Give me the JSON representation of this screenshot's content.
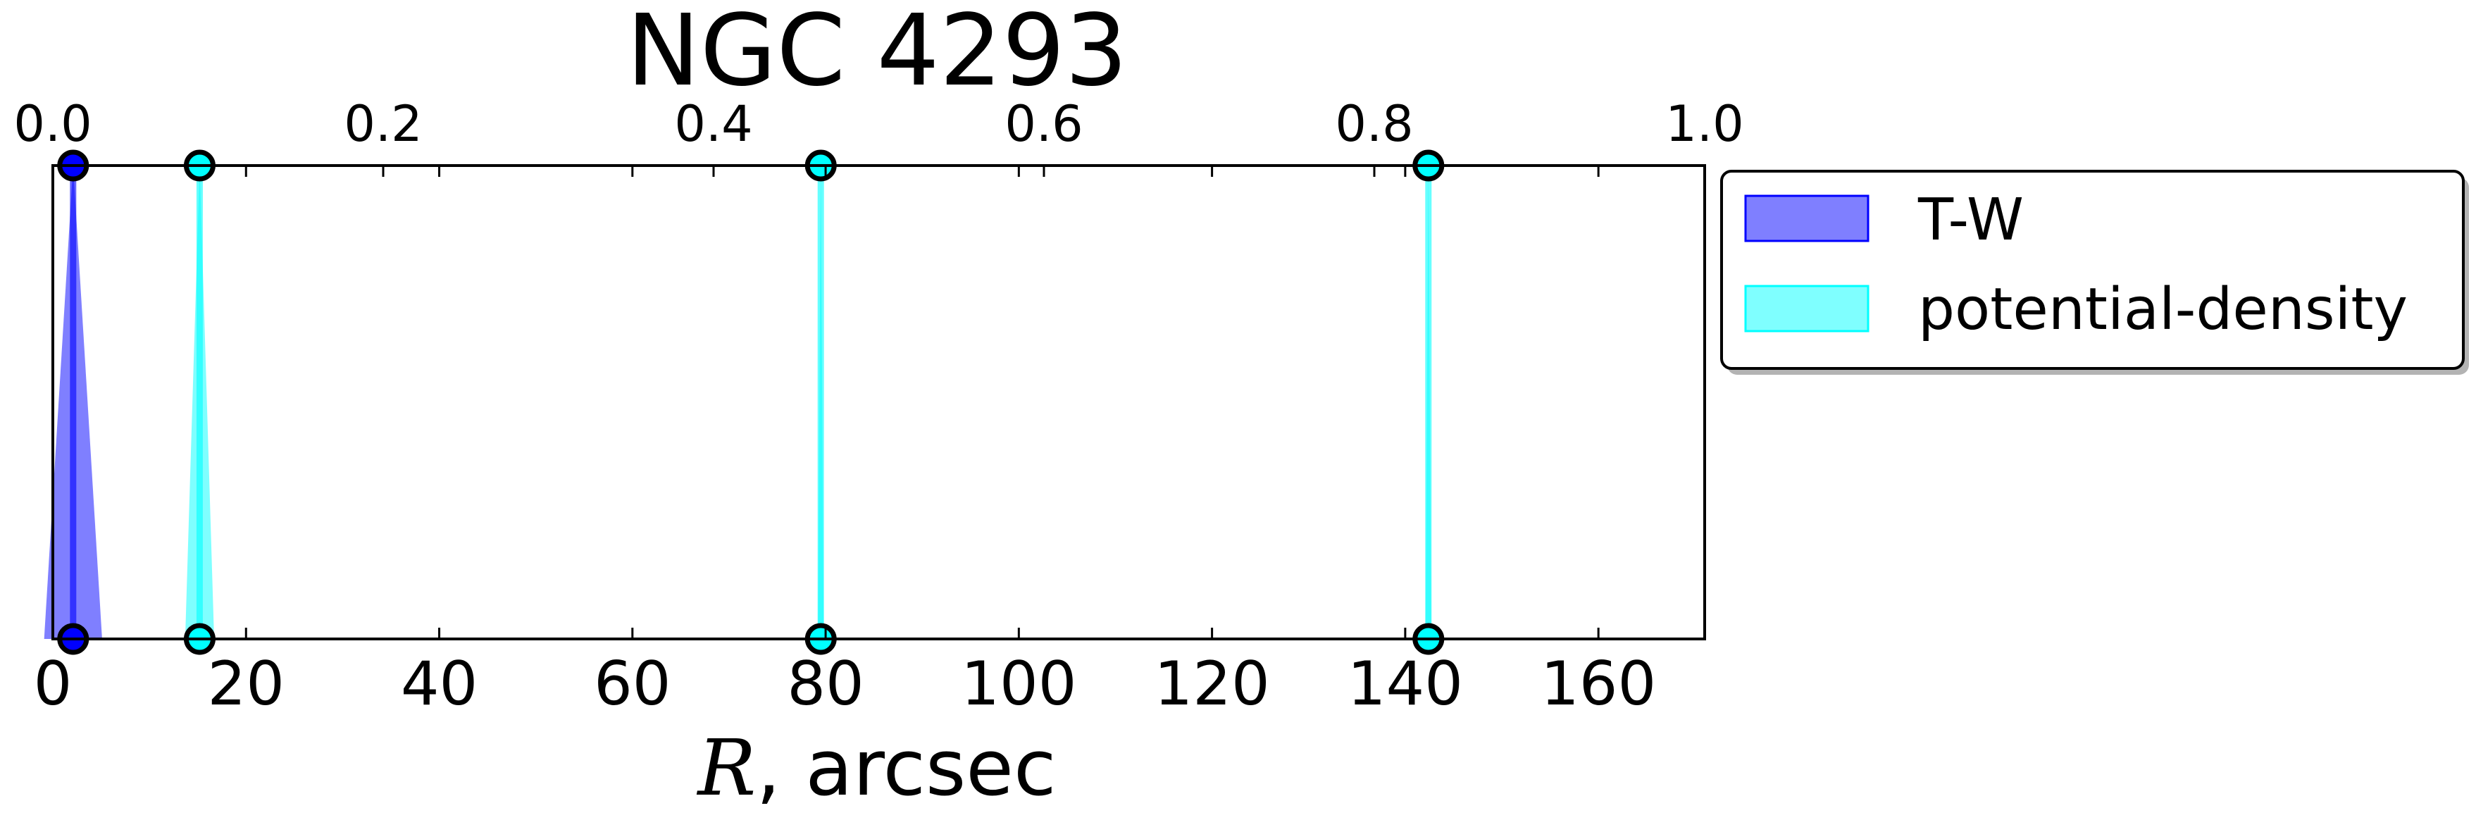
{
  "chart_data": {
    "type": "area",
    "title": "NGC 4293",
    "xlabel_symbol": "R",
    "xlabel_rest": ", arcsec",
    "xlim": [
      0,
      171
    ],
    "x_ticks": [
      "0",
      "20",
      "40",
      "60",
      "80",
      "100",
      "120",
      "140",
      "160"
    ],
    "x_tick_values": [
      0,
      20,
      40,
      60,
      80,
      100,
      120,
      140,
      160
    ],
    "top_xlim": [
      0.0,
      1.0
    ],
    "top_ticks": [
      "0.0",
      "0.2",
      "0.4",
      "0.6",
      "0.8",
      "1.0"
    ],
    "top_tick_values": [
      0.0,
      0.2,
      0.4,
      0.6,
      0.8,
      1.0
    ],
    "grid": false,
    "legend_position": "outside-right-top",
    "series": [
      {
        "name": "T-W",
        "color": "#0000ff",
        "fill_opacity": 0.5,
        "points": [
          {
            "r": 2.1,
            "r_err": 3.0
          }
        ]
      },
      {
        "name": "potential-density",
        "color": "#00ffff",
        "fill_opacity": 0.5,
        "points": [
          {
            "r": 15.2,
            "r_err": 1.5
          },
          {
            "r": 79.5,
            "r_err": 0.3
          },
          {
            "r": 142.4,
            "r_err": 0.3
          }
        ]
      }
    ]
  }
}
